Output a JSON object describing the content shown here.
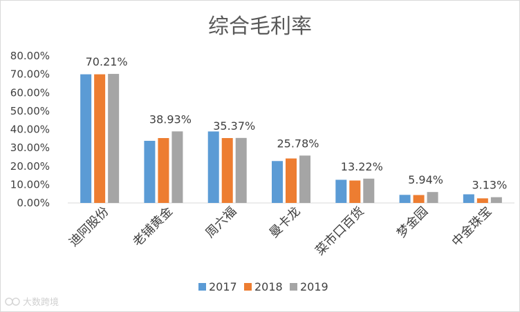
{
  "chart_data": {
    "type": "bar",
    "title": "综合毛利率",
    "categories": [
      "迪阿股份",
      "老铺黄金",
      "周六福",
      "曼卡龙",
      "菜市口百货",
      "梦金园",
      "中金珠宝"
    ],
    "series": [
      {
        "name": "2017",
        "color": "#5b9bd5",
        "values": [
          70.0,
          33.8,
          38.9,
          22.8,
          12.6,
          4.4,
          4.7
        ]
      },
      {
        "name": "2018",
        "color": "#ed7d31",
        "values": [
          70.0,
          35.3,
          35.3,
          24.2,
          12.2,
          4.3,
          2.5
        ]
      },
      {
        "name": "2019",
        "color": "#a5a5a5",
        "values": [
          70.21,
          38.93,
          35.37,
          25.78,
          13.22,
          5.94,
          3.13
        ]
      }
    ],
    "data_labels": [
      "70.21%",
      "38.93%",
      "35.37%",
      "25.78%",
      "13.22%",
      "5.94%",
      "3.13%"
    ],
    "y_ticks": [
      "0.00%",
      "10.00%",
      "20.00%",
      "30.00%",
      "40.00%",
      "50.00%",
      "60.00%",
      "70.00%",
      "80.00%"
    ],
    "ylim": [
      0,
      80
    ],
    "grid": false,
    "legend_position": "bottom"
  },
  "watermark": "大数跨境"
}
